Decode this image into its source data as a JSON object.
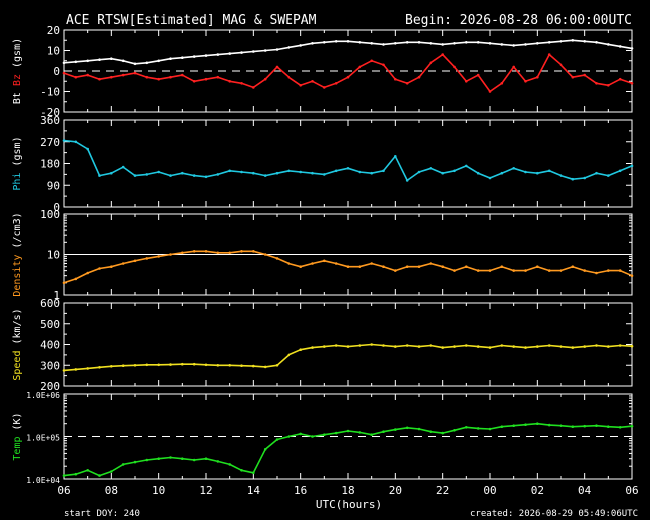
{
  "header": {
    "title": "ACE RTSW[Estimated] MAG & SWEPAM",
    "begin": "Begin: 2026-08-28 06:00:00UTC"
  },
  "footer": {
    "start_doy": "start DOY: 240",
    "created": "created: 2026-08-29 05:49:06UTC"
  },
  "colors": {
    "bt": "#ffffff",
    "bz": "#ff2020",
    "phi": "#20c8e0",
    "density": "#ff9a20",
    "speed": "#f0e020",
    "temp": "#20e020"
  },
  "chart_data": {
    "type": "scatter",
    "xlabel": "UTC(hours)",
    "x_ticks": [
      "06",
      "08",
      "10",
      "12",
      "14",
      "16",
      "18",
      "20",
      "22",
      "00",
      "02",
      "04",
      "06"
    ],
    "xlim": [
      0,
      24
    ],
    "panels": [
      {
        "id": "mag",
        "ylabel_parts": [
          {
            "text": "Bt",
            "color": "#ffffff"
          },
          {
            "text": " Bz",
            "color": "#ff2020"
          },
          {
            "text": " (gsm)",
            "color": "#ffffff"
          }
        ],
        "scale": "linear",
        "ylim": [
          -20,
          20
        ],
        "ticks": [
          {
            "v": 20,
            "label": "20"
          },
          {
            "v": 10,
            "label": "10"
          },
          {
            "v": 0,
            "label": "0"
          },
          {
            "v": -10,
            "label": "-10"
          },
          {
            "v": -20,
            "label": "-20"
          }
        ],
        "dashed": 0,
        "series": [
          {
            "name": "Bt",
            "color": "#ffffff",
            "x": [
              0,
              0.5,
              1,
              1.5,
              2,
              2.5,
              3,
              3.5,
              4,
              4.5,
              5,
              5.5,
              6,
              6.5,
              7,
              7.5,
              8,
              8.5,
              9,
              9.5,
              10,
              10.5,
              11,
              11.5,
              12,
              12.5,
              13,
              13.5,
              14,
              14.5,
              15,
              15.5,
              16,
              16.5,
              17,
              17.5,
              18,
              18.5,
              19,
              19.5,
              20,
              20.5,
              21,
              21.5,
              22,
              22.5,
              23,
              23.5,
              24
            ],
            "y": [
              4,
              4.5,
              5,
              5.5,
              6,
              5,
              3.5,
              4,
              5,
              6,
              6.5,
              7,
              7.5,
              8,
              8.5,
              9,
              9.5,
              10,
              10.5,
              11.5,
              12.5,
              13.5,
              14,
              14.5,
              14.5,
              14,
              13.5,
              13,
              13.5,
              14,
              14,
              13.5,
              13,
              13.5,
              14,
              14,
              13.5,
              13,
              12.5,
              13,
              13.5,
              14,
              14.5,
              15,
              14.5,
              14,
              13,
              12,
              11
            ]
          },
          {
            "name": "Bz",
            "color": "#ff2020",
            "x": [
              0,
              0.5,
              1,
              1.5,
              2,
              2.5,
              3,
              3.5,
              4,
              4.5,
              5,
              5.5,
              6,
              6.5,
              7,
              7.5,
              8,
              8.5,
              9,
              9.5,
              10,
              10.5,
              11,
              11.5,
              12,
              12.5,
              13,
              13.5,
              14,
              14.5,
              15,
              15.5,
              16,
              16.5,
              17,
              17.5,
              18,
              18.5,
              19,
              19.5,
              20,
              20.5,
              21,
              21.5,
              22,
              22.5,
              23,
              23.5,
              24
            ],
            "y": [
              -1,
              -3,
              -2,
              -4,
              -3,
              -2,
              -1,
              -3,
              -4,
              -3,
              -2,
              -5,
              -4,
              -3,
              -5,
              -6,
              -8,
              -4,
              2,
              -3,
              -7,
              -5,
              -8,
              -6,
              -3,
              2,
              5,
              3,
              -4,
              -6,
              -3,
              4,
              8,
              2,
              -5,
              -2,
              -10,
              -6,
              2,
              -5,
              -3,
              8,
              3,
              -3,
              -2,
              -6,
              -7,
              -4,
              -6
            ]
          }
        ]
      },
      {
        "id": "phi",
        "ylabel_parts": [
          {
            "text": "Phi",
            "color": "#20c8e0"
          },
          {
            "text": " (gsm)",
            "color": "#ffffff"
          }
        ],
        "scale": "linear",
        "ylim": [
          0,
          360
        ],
        "ticks": [
          {
            "v": 360,
            "label": "360"
          },
          {
            "v": 270,
            "label": "270"
          },
          {
            "v": 180,
            "label": "180"
          },
          {
            "v": 90,
            "label": "90"
          },
          {
            "v": 0,
            "label": "0"
          }
        ],
        "dashed": null,
        "series": [
          {
            "name": "Phi",
            "color": "#20c8e0",
            "x": [
              0,
              0.5,
              1,
              1.5,
              2,
              2.5,
              3,
              3.5,
              4,
              4.5,
              5,
              5.5,
              6,
              6.5,
              7,
              7.5,
              8,
              8.5,
              9,
              9.5,
              10,
              10.5,
              11,
              11.5,
              12,
              12.5,
              13,
              13.5,
              14,
              14.5,
              15,
              15.5,
              16,
              16.5,
              17,
              17.5,
              18,
              18.5,
              19,
              19.5,
              20,
              20.5,
              21,
              21.5,
              22,
              22.5,
              23,
              23.5,
              24
            ],
            "y": [
              275,
              270,
              240,
              130,
              140,
              165,
              130,
              135,
              145,
              130,
              140,
              130,
              125,
              135,
              150,
              145,
              140,
              130,
              140,
              150,
              145,
              140,
              135,
              150,
              160,
              145,
              140,
              150,
              210,
              110,
              145,
              160,
              140,
              150,
              170,
              140,
              120,
              140,
              160,
              145,
              140,
              150,
              130,
              115,
              120,
              140,
              130,
              150,
              170
            ]
          }
        ]
      },
      {
        "id": "density",
        "ylabel_parts": [
          {
            "text": "Density",
            "color": "#ff9a20"
          },
          {
            "text": " (/cm3)",
            "color": "#ffffff"
          }
        ],
        "scale": "log",
        "ylim": [
          1,
          100
        ],
        "ticks": [
          {
            "v": 100,
            "label": "100"
          },
          {
            "v": 10,
            "label": "10"
          },
          {
            "v": 1,
            "label": "1"
          }
        ],
        "dashed": null,
        "solid": 10,
        "series": [
          {
            "name": "Density",
            "color": "#ff9a20",
            "x": [
              0,
              0.5,
              1,
              1.5,
              2,
              2.5,
              3,
              3.5,
              4,
              4.5,
              5,
              5.5,
              6,
              6.5,
              7,
              7.5,
              8,
              8.5,
              9,
              9.5,
              10,
              10.5,
              11,
              11.5,
              12,
              12.5,
              13,
              13.5,
              14,
              14.5,
              15,
              15.5,
              16,
              16.5,
              17,
              17.5,
              18,
              18.5,
              19,
              19.5,
              20,
              20.5,
              21,
              21.5,
              22,
              22.5,
              23,
              23.5,
              24
            ],
            "y": [
              2,
              2.5,
              3.5,
              4.5,
              5,
              6,
              7,
              8,
              9,
              10,
              11,
              12,
              12,
              11,
              11,
              12,
              12,
              10,
              8,
              6,
              5,
              6,
              7,
              6,
              5,
              5,
              6,
              5,
              4,
              5,
              5,
              6,
              5,
              4,
              5,
              4,
              4,
              5,
              4,
              4,
              5,
              4,
              4,
              5,
              4,
              3.5,
              4,
              4,
              3
            ]
          }
        ]
      },
      {
        "id": "speed",
        "ylabel_parts": [
          {
            "text": "Speed",
            "color": "#f0e020"
          },
          {
            "text": " (km/s)",
            "color": "#ffffff"
          }
        ],
        "scale": "linear",
        "ylim": [
          200,
          600
        ],
        "ticks": [
          {
            "v": 600,
            "label": "600"
          },
          {
            "v": 500,
            "label": "500"
          },
          {
            "v": 400,
            "label": "400"
          },
          {
            "v": 300,
            "label": "300"
          },
          {
            "v": 200,
            "label": "200"
          }
        ],
        "dashed": null,
        "series": [
          {
            "name": "Speed",
            "color": "#f0e020",
            "x": [
              0,
              0.5,
              1,
              1.5,
              2,
              2.5,
              3,
              3.5,
              4,
              4.5,
              5,
              5.5,
              6,
              6.5,
              7,
              7.5,
              8,
              8.5,
              9,
              9.5,
              10,
              10.5,
              11,
              11.5,
              12,
              12.5,
              13,
              13.5,
              14,
              14.5,
              15,
              15.5,
              16,
              16.5,
              17,
              17.5,
              18,
              18.5,
              19,
              19.5,
              20,
              20.5,
              21,
              21.5,
              22,
              22.5,
              23,
              23.5,
              24
            ],
            "y": [
              275,
              280,
              285,
              290,
              295,
              298,
              300,
              302,
              302,
              303,
              305,
              305,
              302,
              300,
              300,
              298,
              296,
              292,
              300,
              350,
              375,
              385,
              390,
              395,
              390,
              395,
              400,
              395,
              390,
              395,
              390,
              395,
              385,
              390,
              395,
              390,
              385,
              395,
              390,
              385,
              390,
              395,
              390,
              385,
              390,
              395,
              390,
              395,
              392
            ]
          }
        ]
      },
      {
        "id": "temp",
        "ylabel_parts": [
          {
            "text": "Temp",
            "color": "#20e020"
          },
          {
            "text": " (K)",
            "color": "#ffffff"
          }
        ],
        "scale": "log",
        "ylim": [
          10000,
          1000000
        ],
        "ticks": [
          {
            "v": 1000000,
            "label": "1.0E+06"
          },
          {
            "v": 100000,
            "label": "1.0E+05"
          },
          {
            "v": 10000,
            "label": "1.0E+04"
          }
        ],
        "dashed": 100000,
        "series": [
          {
            "name": "Temp",
            "color": "#20e020",
            "x": [
              0,
              0.5,
              1,
              1.5,
              2,
              2.5,
              3,
              3.5,
              4,
              4.5,
              5,
              5.5,
              6,
              6.5,
              7,
              7.5,
              8,
              8.5,
              9,
              9.5,
              10,
              10.5,
              11,
              11.5,
              12,
              12.5,
              13,
              13.5,
              14,
              14.5,
              15,
              15.5,
              16,
              16.5,
              17,
              17.5,
              18,
              18.5,
              19,
              19.5,
              20,
              20.5,
              21,
              21.5,
              22,
              22.5,
              23,
              23.5,
              24
            ],
            "y": [
              12000,
              13000,
              16000,
              12000,
              15000,
              22000,
              25000,
              28000,
              30000,
              32000,
              30000,
              28000,
              30000,
              26000,
              22000,
              16000,
              14000,
              50000,
              85000,
              100000,
              115000,
              100000,
              110000,
              120000,
              135000,
              125000,
              110000,
              130000,
              145000,
              160000,
              150000,
              130000,
              120000,
              140000,
              165000,
              155000,
              150000,
              170000,
              180000,
              190000,
              200000,
              185000,
              180000,
              170000,
              175000,
              180000,
              170000,
              165000,
              175000
            ]
          }
        ]
      }
    ]
  }
}
